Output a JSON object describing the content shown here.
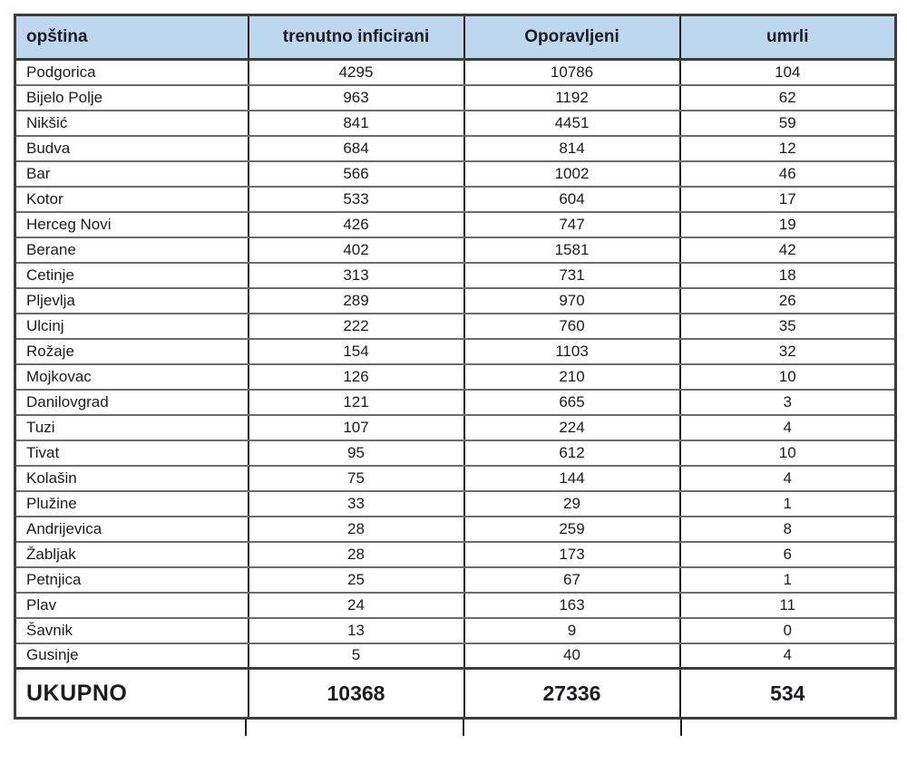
{
  "chart_data": {
    "type": "table",
    "columns": [
      {
        "key": "opstina",
        "label": "opština",
        "align": "left"
      },
      {
        "key": "trenutno-inficirani",
        "label": "trenutno inficirani",
        "align": "center"
      },
      {
        "key": "oporavljeni",
        "label": "Oporavljeni",
        "align": "center"
      },
      {
        "key": "umrli",
        "label": "umrli",
        "align": "center"
      }
    ],
    "rows": [
      [
        "Podgorica",
        4295,
        10786,
        104
      ],
      [
        "Bijelo Polje",
        963,
        1192,
        62
      ],
      [
        "Nikšić",
        841,
        4451,
        59
      ],
      [
        "Budva",
        684,
        814,
        12
      ],
      [
        "Bar",
        566,
        1002,
        46
      ],
      [
        "Kotor",
        533,
        604,
        17
      ],
      [
        "Herceg Novi",
        426,
        747,
        19
      ],
      [
        "Berane",
        402,
        1581,
        42
      ],
      [
        "Cetinje",
        313,
        731,
        18
      ],
      [
        "Pljevlja",
        289,
        970,
        26
      ],
      [
        "Ulcinj",
        222,
        760,
        35
      ],
      [
        "Rožaje",
        154,
        1103,
        32
      ],
      [
        "Mojkovac",
        126,
        210,
        10
      ],
      [
        "Danilovgrad",
        121,
        665,
        3
      ],
      [
        "Tuzi",
        107,
        224,
        4
      ],
      [
        "Tivat",
        95,
        612,
        10
      ],
      [
        "Kolašin",
        75,
        144,
        4
      ],
      [
        "Plužine",
        33,
        29,
        1
      ],
      [
        "Andrijevica",
        28,
        259,
        8
      ],
      [
        "Žabljak",
        28,
        173,
        6
      ],
      [
        "Petnjica",
        25,
        67,
        1
      ],
      [
        "Plav",
        24,
        163,
        11
      ],
      [
        "Šavnik",
        13,
        9,
        0
      ],
      [
        "Gusinje",
        5,
        40,
        4
      ]
    ],
    "total_row": {
      "label": "UKUPNO",
      "values": [
        10368,
        27336,
        534
      ]
    },
    "title": "",
    "legend": null,
    "grid": "full"
  },
  "colors": {
    "header_bg": "#bdd7ee",
    "border_outer": "#3c3c3c",
    "border_vertical": "#1c1c1c",
    "border_horizontal": "#6b6b6b",
    "text": "#1b1b22",
    "page_bg": "#ffffff"
  }
}
